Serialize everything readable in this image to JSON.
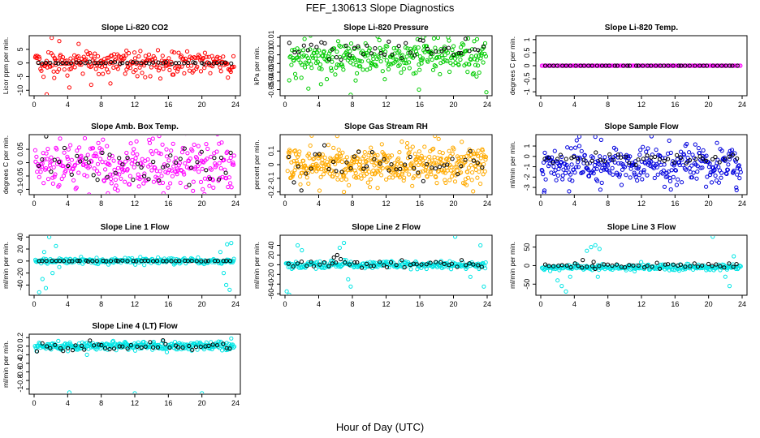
{
  "figure": {
    "title": "FEF_130613  Slope Diagnostics",
    "xlabel": "Hour of Day (UTC)"
  },
  "chart_data": [
    {
      "type": "scatter",
      "title": "Slope Li-820 CO2",
      "ylabel": "Licor ppm per min.",
      "xlim": [
        0,
        24
      ],
      "xticks": [
        0,
        4,
        8,
        12,
        16,
        20,
        24
      ],
      "ylim": [
        -12,
        10
      ],
      "yticks": [
        -10,
        -5,
        0,
        5
      ],
      "series": [
        {
          "color": "#ff0000",
          "marker": "open-circle",
          "x_range": [
            0.1,
            23.9
          ],
          "count": 260,
          "center": 0,
          "spread": 2.2,
          "extra_points": [
            [
              2.1,
              9.2
            ],
            [
              2.4,
              -5.5
            ],
            [
              1.5,
              -11.5
            ],
            [
              3.0,
              8.0
            ],
            [
              4.2,
              -9.0
            ],
            [
              6.8,
              -8.0
            ],
            [
              5.3,
              7.0
            ],
            [
              8.2,
              -4.0
            ],
            [
              9.1,
              -7.5
            ],
            [
              11.0,
              4.5
            ]
          ]
        },
        {
          "color": "#000000",
          "marker": "open-circle",
          "x_range": [
            0.3,
            23.8
          ],
          "count": 46,
          "center": 0,
          "spread": 0.15,
          "extra_points": []
        }
      ]
    },
    {
      "type": "scatter",
      "title": "Slope Li-820 Pressure",
      "ylabel": "kPa per min.",
      "xlim": [
        0,
        24
      ],
      "xticks": [
        0,
        4,
        8,
        12,
        16,
        20,
        24
      ],
      "ylim": [
        -0.057,
        0.012
      ],
      "yticks": [
        -0.05,
        -0.04,
        -0.03,
        -0.02,
        -0.01,
        0.0,
        0.01
      ],
      "series": [
        {
          "color": "#00cc00",
          "marker": "open-circle",
          "x_range": [
            0.5,
            23.9
          ],
          "count": 300,
          "center": -0.012,
          "spread": 0.012,
          "extra_points": [
            [
              7.8,
              -0.056
            ],
            [
              15.9,
              -0.05
            ],
            [
              23.9,
              -0.053
            ],
            [
              16.4,
              0.01
            ],
            [
              22.8,
              0.008
            ]
          ]
        },
        {
          "color": "#000000",
          "marker": "open-circle",
          "x_range": [
            0.5,
            23.9
          ],
          "count": 46,
          "center": -0.003,
          "spread": 0.006,
          "extra_points": []
        }
      ]
    },
    {
      "type": "scatter",
      "title": "Slope Li-820 Temp.",
      "ylabel": "degrees C per min.",
      "xlim": [
        0,
        24
      ],
      "xticks": [
        0,
        4,
        8,
        12,
        16,
        20,
        24
      ],
      "ylim": [
        -1.15,
        1.15
      ],
      "yticks": [
        -1.0,
        -0.5,
        0.0,
        0.5,
        1.0
      ],
      "series": [
        {
          "color": "#ff00ff",
          "marker": "open-circle",
          "x_range": [
            0.1,
            23.9
          ],
          "count": 150,
          "center": 0,
          "spread": 0.0,
          "extra_points": []
        },
        {
          "color": "#000000",
          "marker": "open-circle",
          "x_range": [
            0.4,
            23.8
          ],
          "count": 46,
          "center": 0,
          "spread": 0.0,
          "extra_points": []
        }
      ]
    },
    {
      "type": "scatter",
      "title": "Slope Amb. Box Temp.",
      "ylabel": "degrees C per min.",
      "xlim": [
        0,
        24
      ],
      "xticks": [
        0,
        4,
        8,
        12,
        16,
        20,
        24
      ],
      "ylim": [
        -0.12,
        0.105
      ],
      "yticks": [
        -0.1,
        -0.05,
        0.0,
        0.05
      ],
      "series": [
        {
          "color": "#ff00ff",
          "marker": "open-circle",
          "x_range": [
            0.1,
            23.9
          ],
          "count": 300,
          "center": -0.01,
          "spread": 0.045,
          "extra_points": [
            [
              14.9,
              0.1
            ],
            [
              8.8,
              -0.115
            ],
            [
              3.1,
              0.09
            ],
            [
              20.1,
              -0.1
            ]
          ]
        },
        {
          "color": "#000000",
          "marker": "open-circle",
          "x_range": [
            0.3,
            23.8
          ],
          "count": 46,
          "center": 0.0,
          "spread": 0.04,
          "extra_points": []
        }
      ]
    },
    {
      "type": "scatter",
      "title": "Slope Gas Stream RH",
      "ylabel": "percent per min.",
      "xlim": [
        0,
        24
      ],
      "xticks": [
        0,
        4,
        8,
        12,
        16,
        20,
        24
      ],
      "ylim": [
        -0.22,
        0.22
      ],
      "yticks": [
        -0.2,
        -0.1,
        0.0,
        0.1
      ],
      "series": [
        {
          "color": "#ffaa00",
          "marker": "open-circle",
          "x_range": [
            0.3,
            23.9
          ],
          "count": 420,
          "center": 0.0,
          "spread": 0.07,
          "extra_points": [
            [
              6.2,
              0.21
            ],
            [
              7.0,
              -0.2
            ],
            [
              11.0,
              -0.17
            ],
            [
              4.1,
              -0.19
            ]
          ]
        },
        {
          "color": "#000000",
          "marker": "open-circle",
          "x_range": [
            0.4,
            23.8
          ],
          "count": 46,
          "center": 0.0,
          "spread": 0.05,
          "extra_points": []
        }
      ]
    },
    {
      "type": "scatter",
      "title": "Slope Sample Flow",
      "ylabel": "ml/min per min.",
      "xlim": [
        0,
        24
      ],
      "xticks": [
        0,
        4,
        8,
        12,
        16,
        20,
        24
      ],
      "ylim": [
        -3.7,
        2.1
      ],
      "yticks": [
        -3,
        -2,
        -1,
        0,
        1
      ],
      "series": [
        {
          "color": "#0000dd",
          "marker": "open-circle",
          "x_range": [
            0.1,
            23.9
          ],
          "count": 320,
          "center": -0.9,
          "spread": 0.9,
          "extra_points": [
            [
              6.5,
              1.9
            ],
            [
              7.2,
              1.6
            ],
            [
              4.6,
              1.0
            ],
            [
              21.0,
              1.3
            ],
            [
              0.4,
              -3.5
            ],
            [
              15.5,
              -3.2
            ],
            [
              23.3,
              -3.0
            ]
          ]
        },
        {
          "color": "#000000",
          "marker": "open-circle",
          "x_range": [
            0.3,
            23.8
          ],
          "count": 46,
          "center": -0.2,
          "spread": 0.3,
          "extra_points": []
        }
      ]
    },
    {
      "type": "scatter",
      "title": "Slope Line 1 Flow",
      "ylabel": "ml/min per min.",
      "xlim": [
        0,
        24
      ],
      "xticks": [
        0,
        4,
        8,
        12,
        16,
        20,
        24
      ],
      "ylim": [
        -57,
        43
      ],
      "yticks": [
        -40,
        -20,
        0,
        20,
        40
      ],
      "series": [
        {
          "color": "#00e5e5",
          "marker": "open-circle",
          "x_range": [
            0.1,
            23.9
          ],
          "count": 260,
          "center": 0,
          "spread": 2.5,
          "extra_points": [
            [
              1.0,
              -30
            ],
            [
              1.4,
              -45
            ],
            [
              1.8,
              40
            ],
            [
              2.2,
              -20
            ],
            [
              2.6,
              25
            ],
            [
              3.0,
              -10
            ],
            [
              1.2,
              15
            ],
            [
              0.6,
              -52
            ],
            [
              22.6,
              -20
            ],
            [
              23.0,
              28
            ],
            [
              23.5,
              30
            ],
            [
              22.9,
              -40
            ],
            [
              23.3,
              -48
            ],
            [
              22.2,
              15
            ]
          ]
        },
        {
          "color": "#000000",
          "marker": "open-circle",
          "x_range": [
            0.3,
            23.8
          ],
          "count": 46,
          "center": 0,
          "spread": 0.3,
          "extra_points": []
        }
      ]
    },
    {
      "type": "scatter",
      "title": "Slope Line 2 Flow",
      "ylabel": "ml/min per min.",
      "xlim": [
        0,
        24
      ],
      "xticks": [
        0,
        4,
        8,
        12,
        16,
        20,
        24
      ],
      "ylim": [
        -63,
        61
      ],
      "yticks": [
        -60,
        -40,
        -20,
        0,
        20,
        40
      ],
      "series": [
        {
          "color": "#00e5e5",
          "marker": "open-circle",
          "x_range": [
            0.1,
            23.9
          ],
          "count": 260,
          "center": 0,
          "spread": 4,
          "extra_points": [
            [
              0.2,
              -55
            ],
            [
              0.5,
              -62
            ],
            [
              1.5,
              40
            ],
            [
              2.0,
              30
            ],
            [
              6.5,
              35
            ],
            [
              7.0,
              45
            ],
            [
              7.5,
              -30
            ],
            [
              7.8,
              -45
            ],
            [
              20.2,
              58
            ],
            [
              23.2,
              40
            ],
            [
              23.6,
              -45
            ],
            [
              22.0,
              -25
            ]
          ]
        },
        {
          "color": "#000000",
          "marker": "open-circle",
          "x_range": [
            0.3,
            23.8
          ],
          "count": 46,
          "center": 0,
          "spread": 4,
          "extra_points": [
            [
              5.8,
              15
            ],
            [
              6.2,
              20
            ]
          ]
        }
      ]
    },
    {
      "type": "scatter",
      "title": "Slope Line 3 Flow",
      "ylabel": "ml/min per min.",
      "xlim": [
        0,
        24
      ],
      "xticks": [
        0,
        4,
        8,
        12,
        16,
        20,
        24
      ],
      "ylim": [
        -80,
        82
      ],
      "yticks": [
        -50,
        0,
        50
      ],
      "series": [
        {
          "color": "#00e5e5",
          "marker": "open-circle",
          "x_range": [
            0.1,
            23.9
          ],
          "count": 260,
          "center": -5,
          "spread": 4,
          "extra_points": [
            [
              2.0,
              -40
            ],
            [
              2.5,
              -55
            ],
            [
              3.0,
              -70
            ],
            [
              3.5,
              -30
            ],
            [
              5.5,
              40
            ],
            [
              6.0,
              50
            ],
            [
              6.5,
              55
            ],
            [
              7.0,
              45
            ],
            [
              6.8,
              -30
            ],
            [
              20.5,
              78
            ],
            [
              22.0,
              -30
            ],
            [
              22.5,
              -55
            ],
            [
              23.0,
              25
            ]
          ]
        },
        {
          "color": "#000000",
          "marker": "open-circle",
          "x_range": [
            0.3,
            23.8
          ],
          "count": 46,
          "center": 0,
          "spread": 3,
          "extra_points": [
            [
              5.0,
              15
            ],
            [
              6.3,
              10
            ]
          ]
        }
      ]
    },
    {
      "type": "scatter",
      "title": "Slope Line 4 (LT) Flow",
      "ylabel": "ml/min per min.",
      "xlim": [
        0,
        24
      ],
      "xticks": [
        0,
        4,
        8,
        12,
        16,
        20,
        24
      ],
      "ylim": [
        -1.12,
        0.28
      ],
      "yticks": [
        -1.0,
        -0.8,
        -0.6,
        -0.4,
        -0.2,
        0.0,
        0.2
      ],
      "series": [
        {
          "color": "#00e5e5",
          "marker": "open-circle",
          "x_range": [
            0.1,
            23.9
          ],
          "count": 300,
          "center": 0.0,
          "spread": 0.05,
          "extra_points": [
            [
              4.2,
              -1.08
            ],
            [
              12.0,
              -1.1
            ],
            [
              20.0,
              -1.1
            ],
            [
              6.3,
              -0.2
            ],
            [
              23.5,
              0.18
            ]
          ]
        },
        {
          "color": "#000000",
          "marker": "open-circle",
          "x_range": [
            0.3,
            23.8
          ],
          "count": 46,
          "center": 0.0,
          "spread": 0.05,
          "extra_points": []
        }
      ]
    }
  ]
}
